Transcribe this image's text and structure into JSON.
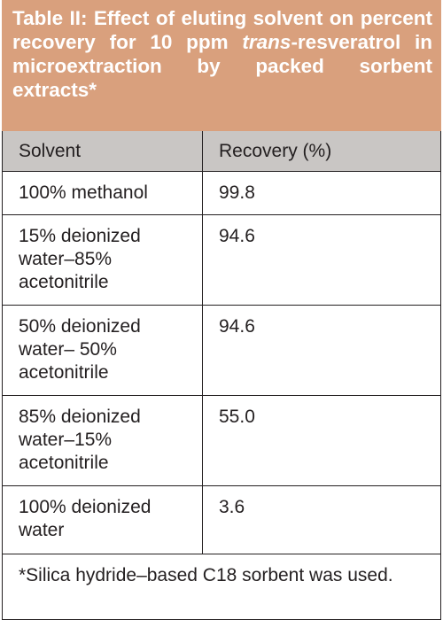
{
  "table": {
    "title": [
      "Table II: Effect of eluting solvent on percent recovery for 10 ppm ",
      "trans",
      "-resveratrol in microextraction by packed sorbent extracts*"
    ],
    "header": [
      "Solvent",
      "Recovery (%)"
    ],
    "rows": [
      [
        "100% methanol",
        "99.8"
      ],
      [
        "15% deionized water–85% acetonitrile",
        "94.6"
      ],
      [
        "50% deionized water– 50% acetonitrile",
        "94.6"
      ],
      [
        "85% deionized water–15% acetonitrile",
        "55.0"
      ],
      [
        "100% deionized water",
        "3.6"
      ]
    ],
    "footnote": "*Silica hydride–based C18 sorbent was used."
  }
}
